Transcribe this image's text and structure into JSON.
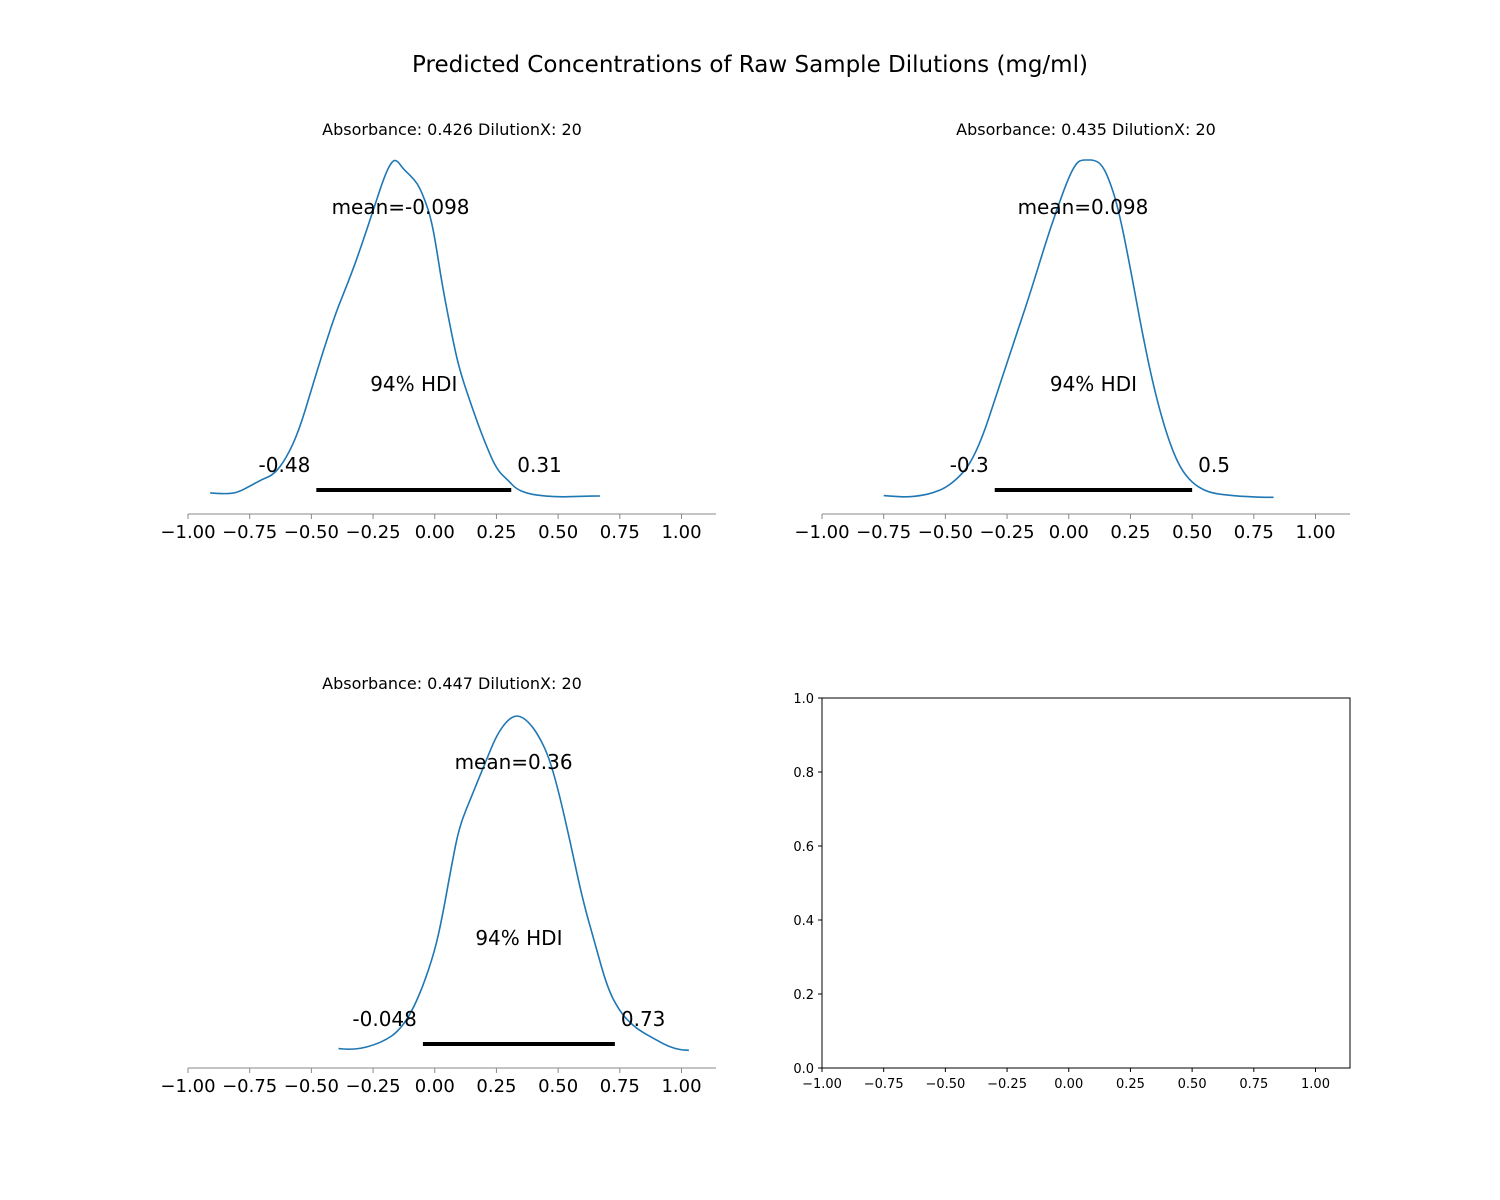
{
  "figure": {
    "title": "Predicted Concentrations of Raw Sample Dilutions (mg/ml)"
  },
  "chart_data": [
    {
      "type": "area",
      "title": "Absorbance: 0.426 DilutionX: 20",
      "xlim": [
        -1.0,
        1.0
      ],
      "x_ticks": [
        "−1.00",
        "−0.75",
        "−0.50",
        "−0.25",
        "0.00",
        "0.25",
        "0.50",
        "0.75",
        "1.00"
      ],
      "x_tick_values": [
        -1.0,
        -0.75,
        -0.5,
        -0.25,
        0.0,
        0.25,
        0.5,
        0.75,
        1.0
      ],
      "mean_label": "mean=-0.098",
      "hdi_label": "94% HDI",
      "hdi": [
        -0.48,
        0.31
      ],
      "hdi_low_label": "-0.48",
      "hdi_high_label": "0.31",
      "density": {
        "x": [
          -0.91,
          -0.85,
          -0.8,
          -0.75,
          -0.7,
          -0.65,
          -0.6,
          -0.55,
          -0.5,
          -0.45,
          -0.4,
          -0.35,
          -0.3,
          -0.25,
          -0.2,
          -0.17,
          -0.15,
          -0.13,
          -0.1,
          -0.07,
          -0.05,
          -0.02,
          0.0,
          0.03,
          0.07,
          0.1,
          0.15,
          0.2,
          0.25,
          0.3,
          0.33,
          0.38,
          0.45,
          0.52,
          0.6,
          0.67
        ],
        "y": [
          0.015,
          0.012,
          0.016,
          0.035,
          0.055,
          0.07,
          0.12,
          0.2,
          0.32,
          0.44,
          0.55,
          0.64,
          0.74,
          0.85,
          0.96,
          1.0,
          0.997,
          0.975,
          0.955,
          0.93,
          0.9,
          0.84,
          0.77,
          0.63,
          0.48,
          0.38,
          0.27,
          0.17,
          0.085,
          0.05,
          0.027,
          0.012,
          0.005,
          0.003,
          0.005,
          0.006
        ]
      }
    },
    {
      "type": "area",
      "title": "Absorbance: 0.435 DilutionX: 20",
      "xlim": [
        -1.0,
        1.0
      ],
      "x_ticks": [
        "−1.00",
        "−0.75",
        "−0.50",
        "−0.25",
        "0.00",
        "0.25",
        "0.50",
        "0.75",
        "1.00"
      ],
      "x_tick_values": [
        -1.0,
        -0.75,
        -0.5,
        -0.25,
        0.0,
        0.25,
        0.5,
        0.75,
        1.0
      ],
      "mean_label": "mean=0.098",
      "hdi_label": "94% HDI",
      "hdi": [
        -0.3,
        0.5
      ],
      "hdi_low_label": "-0.3",
      "hdi_high_label": "0.5",
      "density": {
        "x": [
          -0.75,
          -0.7,
          -0.65,
          -0.6,
          -0.55,
          -0.5,
          -0.45,
          -0.4,
          -0.35,
          -0.3,
          -0.25,
          -0.2,
          -0.15,
          -0.1,
          -0.05,
          0.0,
          0.03,
          0.05,
          0.08,
          0.1,
          0.13,
          0.16,
          0.2,
          0.25,
          0.3,
          0.35,
          0.4,
          0.45,
          0.5,
          0.55,
          0.6,
          0.65,
          0.7,
          0.75,
          0.8,
          0.83
        ],
        "y": [
          0.007,
          0.004,
          0.003,
          0.007,
          0.015,
          0.03,
          0.058,
          0.1,
          0.18,
          0.29,
          0.4,
          0.51,
          0.62,
          0.74,
          0.85,
          0.95,
          0.99,
          1.0,
          1.0,
          1.0,
          0.99,
          0.95,
          0.86,
          0.68,
          0.48,
          0.31,
          0.18,
          0.09,
          0.045,
          0.022,
          0.012,
          0.008,
          0.005,
          0.003,
          0.002,
          0.002
        ]
      }
    },
    {
      "type": "area",
      "title": "Absorbance: 0.447 DilutionX: 20",
      "xlim": [
        -1.0,
        1.0
      ],
      "x_ticks": [
        "−1.00",
        "−0.75",
        "−0.50",
        "−0.25",
        "0.00",
        "0.25",
        "0.50",
        "0.75",
        "1.00"
      ],
      "x_tick_values": [
        -1.0,
        -0.75,
        -0.5,
        -0.25,
        0.0,
        0.25,
        0.5,
        0.75,
        1.0
      ],
      "mean_label": "mean=0.36",
      "hdi_label": "94% HDI",
      "hdi": [
        -0.048,
        0.73
      ],
      "hdi_low_label": "-0.048",
      "hdi_high_label": "0.73",
      "density": {
        "x": [
          -0.39,
          -0.35,
          -0.3,
          -0.25,
          -0.2,
          -0.15,
          -0.1,
          -0.05,
          0.0,
          0.03,
          0.07,
          0.1,
          0.15,
          0.2,
          0.25,
          0.3,
          0.34,
          0.38,
          0.42,
          0.46,
          0.5,
          0.55,
          0.6,
          0.65,
          0.7,
          0.75,
          0.8,
          0.85,
          0.9,
          0.95,
          1.0,
          1.03
        ],
        "y": [
          0.01,
          0.008,
          0.01,
          0.02,
          0.035,
          0.06,
          0.11,
          0.19,
          0.3,
          0.4,
          0.56,
          0.67,
          0.76,
          0.85,
          0.94,
          0.99,
          1.0,
          0.98,
          0.94,
          0.88,
          0.78,
          0.62,
          0.45,
          0.32,
          0.19,
          0.12,
          0.08,
          0.055,
          0.035,
          0.015,
          0.006,
          0.005
        ]
      }
    },
    {
      "type": "scatter",
      "title": "",
      "xlim": [
        -1.0,
        1.0
      ],
      "ylim": [
        0.0,
        1.0
      ],
      "x_ticks": [
        "−1.00",
        "−0.75",
        "−0.50",
        "−0.25",
        "0.00",
        "0.25",
        "0.50",
        "0.75",
        "1.00"
      ],
      "x_tick_values": [
        -1.0,
        -0.75,
        -0.5,
        -0.25,
        0.0,
        0.25,
        0.5,
        0.75,
        1.0
      ],
      "y_ticks": [
        "0.0",
        "0.2",
        "0.4",
        "0.6",
        "0.8",
        "1.0"
      ],
      "y_tick_values": [
        0.0,
        0.2,
        0.4,
        0.6,
        0.8,
        1.0
      ],
      "grid": false,
      "series": []
    }
  ],
  "colors": {
    "line": "#1f77b4",
    "hdi_bar": "#000000",
    "axis": "#888888",
    "frame": "#000000"
  }
}
